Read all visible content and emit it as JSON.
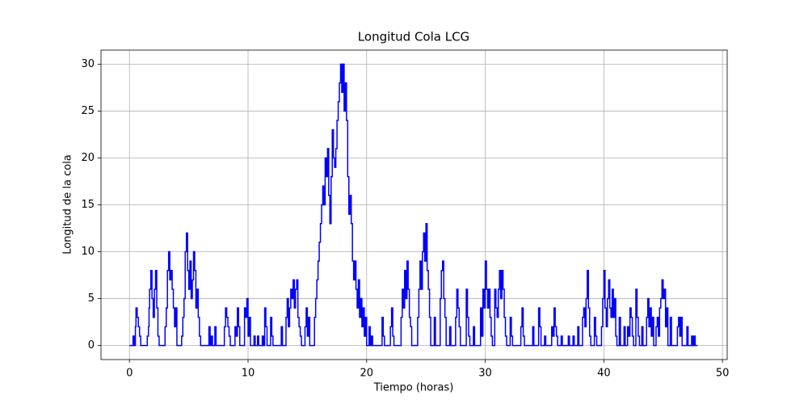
{
  "chart_data": {
    "type": "line",
    "drawstyle": "steps-post",
    "title": "Longitud Cola LCG",
    "xlabel": "Tiempo (horas)",
    "ylabel": "Longitud de la cola",
    "color": "#0000ff",
    "grid": true,
    "xlim": [
      -2.4,
      50.4
    ],
    "xticks": [
      0,
      10,
      20,
      30,
      40,
      50
    ],
    "ylim": [
      -1.5,
      31.5
    ],
    "yticks": [
      0,
      5,
      10,
      15,
      20,
      25,
      30
    ],
    "x": [
      0,
      0.3,
      0.4,
      0.5,
      0.55,
      0.65,
      0.75,
      0.85,
      0.95,
      1.5,
      1.6,
      1.65,
      1.7,
      1.8,
      1.9,
      2.0,
      2.1,
      2.2,
      2.3,
      2.4,
      2.5,
      3.0,
      3.1,
      3.2,
      3.3,
      3.4,
      3.5,
      3.6,
      3.7,
      3.8,
      3.9,
      4.0,
      4.4,
      4.5,
      4.6,
      4.7,
      4.8,
      4.9,
      5.0,
      5.1,
      5.2,
      5.3,
      5.4,
      5.5,
      5.6,
      5.7,
      5.8,
      5.9,
      6.0,
      6.7,
      6.8,
      6.9,
      7.0,
      7.2,
      7.3,
      8.0,
      8.1,
      8.2,
      8.3,
      8.4,
      8.5,
      8.9,
      9.0,
      9.1,
      9.2,
      9.3,
      9.7,
      9.8,
      9.9,
      10.0,
      10.1,
      10.2,
      10.5,
      10.6,
      10.8,
      10.9,
      11.2,
      11.3,
      11.4,
      11.5,
      11.6,
      11.9,
      12.0,
      12.1,
      12.8,
      12.9,
      13.2,
      13.3,
      13.4,
      13.5,
      13.6,
      13.7,
      13.8,
      13.9,
      14.0,
      14.1,
      14.2,
      14.3,
      14.4,
      14.5,
      14.8,
      14.9,
      15.0,
      15.1,
      15.2,
      15.6,
      15.7,
      15.8,
      15.9,
      16.0,
      16.1,
      16.2,
      16.3,
      16.4,
      16.5,
      16.6,
      16.7,
      16.8,
      16.9,
      17.0,
      17.1,
      17.2,
      17.3,
      17.4,
      17.5,
      17.6,
      17.7,
      17.8,
      17.9,
      18.0,
      18.1,
      18.2,
      18.3,
      18.4,
      18.5,
      18.6,
      18.7,
      18.8,
      18.9,
      19.0,
      19.1,
      19.2,
      19.3,
      19.4,
      19.5,
      19.6,
      19.7,
      19.8,
      19.9,
      20.0,
      20.2,
      20.3,
      20.4,
      20.5,
      21.3,
      21.4,
      21.5,
      22.0,
      22.1,
      22.2,
      22.3,
      22.9,
      23.0,
      23.1,
      23.2,
      23.3,
      23.4,
      23.5,
      23.6,
      23.7,
      23.8,
      24.3,
      24.4,
      24.5,
      24.6,
      24.7,
      24.8,
      24.9,
      25.0,
      25.1,
      25.2,
      25.3,
      25.4,
      25.7,
      25.8,
      26.2,
      26.3,
      26.4,
      26.5,
      26.6,
      26.7,
      27.0,
      27.1,
      27.5,
      27.6,
      27.7,
      27.8,
      27.9,
      28.4,
      28.5,
      28.6,
      28.7,
      29.0,
      29.1,
      29.6,
      29.7,
      29.8,
      29.9,
      30.0,
      30.1,
      30.2,
      30.3,
      30.4,
      30.5,
      30.6,
      30.8,
      30.9,
      31.0,
      31.1,
      31.2,
      31.3,
      31.4,
      31.5,
      31.6,
      31.7,
      31.8,
      32.1,
      32.2,
      32.3,
      33.0,
      33.1,
      33.2,
      33.3,
      34.0,
      34.1,
      34.5,
      34.6,
      34.7,
      35.0,
      35.1,
      35.6,
      35.7,
      35.8,
      35.9,
      36.0,
      36.1,
      36.4,
      36.5,
      37.0,
      37.1,
      37.4,
      37.5,
      37.8,
      37.9,
      38.2,
      38.3,
      38.4,
      38.5,
      38.6,
      38.7,
      38.8,
      38.9,
      39.2,
      39.3,
      39.4,
      39.8,
      39.9,
      40.0,
      40.1,
      40.2,
      40.3,
      40.4,
      40.5,
      40.6,
      40.7,
      40.8,
      40.9,
      41.0,
      41.1,
      41.3,
      41.4,
      41.7,
      41.8,
      42.0,
      42.1,
      42.2,
      42.3,
      42.4,
      42.5,
      42.7,
      42.8,
      42.9,
      43.0,
      43.2,
      43.3,
      43.6,
      43.7,
      43.8,
      43.9,
      44.0,
      44.1,
      44.2,
      44.4,
      44.5,
      44.6,
      44.7,
      44.8,
      44.9,
      45.0,
      45.1,
      45.2,
      45.3,
      45.4,
      45.6,
      45.7,
      46.2,
      46.3,
      46.4,
      46.5,
      46.6,
      47.0,
      47.1,
      47.4,
      47.5,
      47.6,
      47.7,
      47.9
    ],
    "values": [
      0,
      1,
      0,
      2,
      4,
      3,
      2,
      1,
      0,
      1,
      2,
      4,
      6,
      8,
      5,
      3,
      6,
      8,
      4,
      1,
      0,
      2,
      4,
      8,
      10,
      7,
      8,
      6,
      4,
      2,
      4,
      0,
      1,
      3,
      5,
      10,
      12,
      8,
      6,
      9,
      5,
      7,
      10,
      8,
      4,
      6,
      3,
      1,
      0,
      2,
      0,
      1,
      0,
      2,
      0,
      2,
      4,
      3,
      2,
      1,
      0,
      2,
      1,
      4,
      2,
      0,
      4,
      3,
      5,
      1,
      3,
      0,
      1,
      0,
      1,
      0,
      1,
      0,
      4,
      2,
      0,
      3,
      1,
      0,
      2,
      0,
      3,
      5,
      2,
      4,
      6,
      5,
      7,
      4,
      6,
      7,
      3,
      2,
      1,
      0,
      2,
      4,
      1,
      3,
      0,
      3,
      5,
      7,
      9,
      11,
      13,
      15,
      17,
      15,
      20,
      18,
      21,
      16,
      13,
      18,
      23,
      20,
      19,
      21,
      24,
      26,
      28,
      30,
      27,
      30,
      25,
      28,
      24,
      18,
      14,
      16,
      13,
      9,
      7,
      9,
      6,
      4,
      7,
      3,
      5,
      2,
      4,
      1,
      3,
      0,
      2,
      0,
      1,
      0,
      3,
      1,
      0,
      2,
      4,
      1,
      0,
      3,
      6,
      4,
      8,
      5,
      9,
      6,
      3,
      2,
      0,
      3,
      6,
      9,
      6,
      10,
      12,
      9,
      13,
      8,
      6,
      3,
      0,
      3,
      0,
      5,
      8,
      9,
      5,
      3,
      0,
      2,
      0,
      3,
      6,
      4,
      2,
      0,
      6,
      3,
      1,
      0,
      2,
      0,
      4,
      1,
      6,
      4,
      9,
      6,
      4,
      6,
      3,
      1,
      0,
      6,
      4,
      3,
      6,
      8,
      5,
      8,
      6,
      3,
      1,
      0,
      3,
      1,
      0,
      2,
      4,
      1,
      0,
      2,
      0,
      4,
      2,
      0,
      1,
      0,
      2,
      1,
      4,
      2,
      1,
      0,
      1,
      0,
      1,
      0,
      1,
      0,
      2,
      0,
      3,
      4,
      2,
      5,
      8,
      4,
      1,
      0,
      3,
      1,
      0,
      2,
      5,
      8,
      4,
      2,
      5,
      7,
      4,
      3,
      6,
      3,
      5,
      1,
      0,
      3,
      0,
      2,
      0,
      2,
      1,
      4,
      3,
      1,
      0,
      6,
      3,
      1,
      0,
      2,
      0,
      3,
      5,
      2,
      4,
      1,
      3,
      0,
      2,
      3,
      1,
      4,
      5,
      7,
      5,
      6,
      2,
      4,
      0,
      3,
      0,
      2,
      3,
      1,
      3,
      0,
      2,
      0,
      1,
      0,
      1,
      0,
      0
    ]
  }
}
